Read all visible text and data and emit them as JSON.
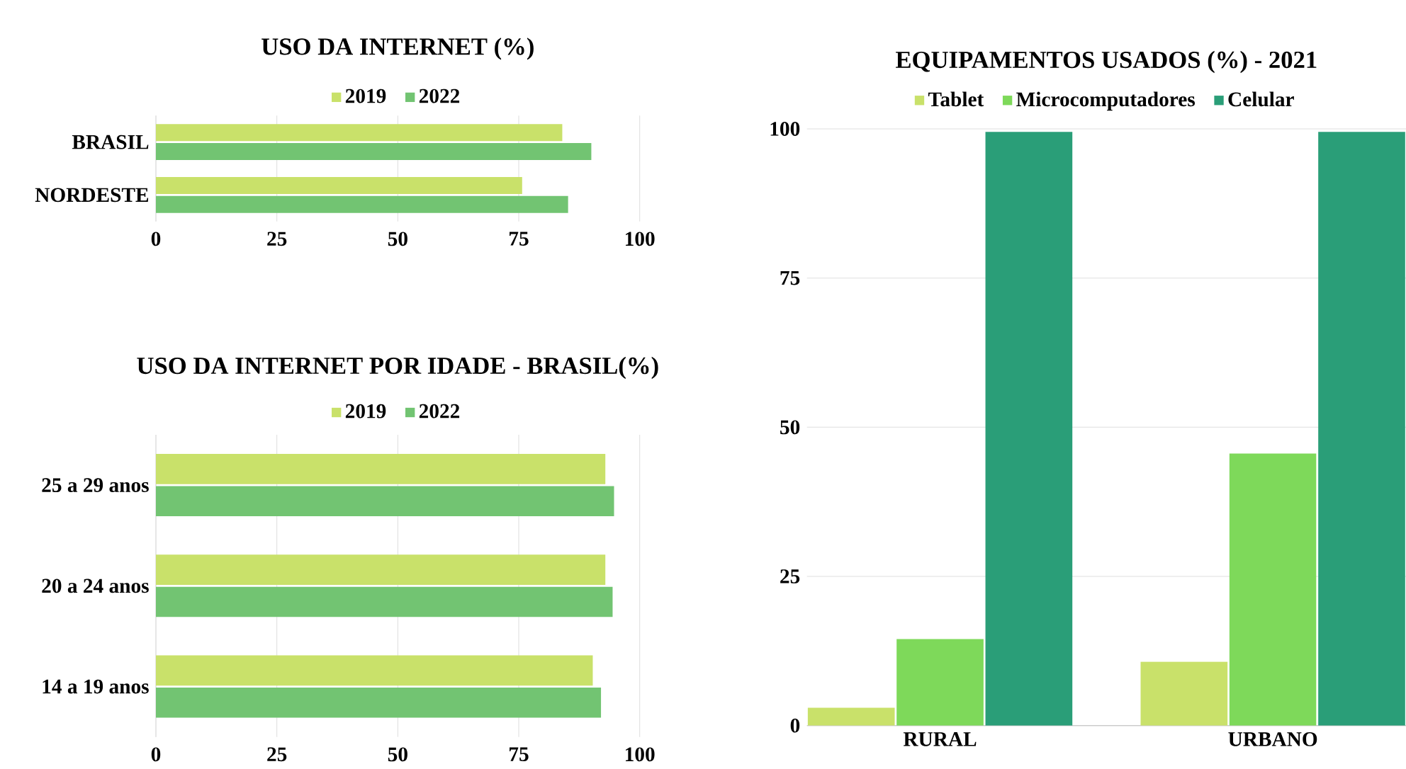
{
  "chart_data": [
    {
      "type": "bar",
      "orientation": "horizontal",
      "title": "USO DA INTERNET (%)",
      "categories": [
        "BRASIL",
        "NORDESTE"
      ],
      "series": [
        {
          "name": "2019",
          "color": "#c9e16a",
          "values": [
            84,
            75.7
          ]
        },
        {
          "name": "2022",
          "color": "#72c472",
          "values": [
            90,
            85.2
          ]
        }
      ],
      "xlim": [
        0,
        100
      ],
      "xticks": [
        0,
        25,
        50,
        75,
        100
      ],
      "grid": "x",
      "legend": "top"
    },
    {
      "type": "bar",
      "orientation": "horizontal",
      "title": "USO DA INTERNET POR IDADE - BRASIL(%)",
      "categories": [
        "25 a 29 anos",
        "20 a 24 anos",
        "14 a 19 anos"
      ],
      "series": [
        {
          "name": "2019",
          "color": "#c9e16a",
          "values": [
            92.9,
            92.9,
            90.3
          ]
        },
        {
          "name": "2022",
          "color": "#72c472",
          "values": [
            94.7,
            94.4,
            92
          ]
        }
      ],
      "xlim": [
        0,
        100
      ],
      "xticks": [
        0,
        25,
        50,
        75,
        100
      ],
      "grid": "x",
      "legend": "top"
    },
    {
      "type": "bar",
      "title": "EQUIPAMENTOS USADOS (%) - 2021",
      "categories": [
        "RURAL",
        "URBANO"
      ],
      "series": [
        {
          "name": "Tablet",
          "color": "#c9e16a",
          "values": [
            3,
            10.7
          ]
        },
        {
          "name": "Microcomputadores",
          "color": "#7ed95a",
          "values": [
            14.5,
            45.6
          ]
        },
        {
          "name": "Celular",
          "color": "#2a9e78",
          "values": [
            99.5,
            99.5
          ]
        }
      ],
      "ylim": [
        0,
        100
      ],
      "yticks": [
        0,
        25,
        50,
        75,
        100
      ],
      "grid": "y",
      "legend": "top"
    }
  ]
}
